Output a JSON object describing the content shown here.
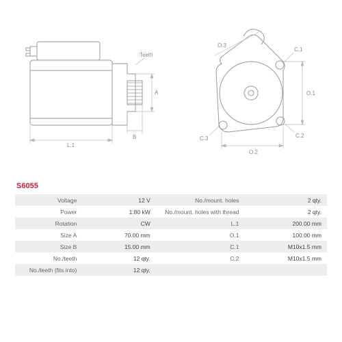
{
  "part_code": "S6055",
  "diagram": {
    "stroke": "#9a9a9a",
    "stroke_width": 1,
    "dim_stroke": "#b0b0b0",
    "side_labels": {
      "L1": "L.1",
      "B": "B",
      "A": "A",
      "Teeth": "Teeth"
    },
    "front_labels": {
      "O1": "O.1",
      "O2": "O.2",
      "O3": "O.3",
      "C1": "C.1",
      "C2": "C.2",
      "C3": "C.3"
    }
  },
  "specs": {
    "rows": [
      {
        "ll": "Voltage",
        "lv": "12 V",
        "rl": "No./mount. holes",
        "rv": "2 qty."
      },
      {
        "ll": "Power",
        "lv": "1.80 kW",
        "rl": "No./mount. holes with thread",
        "rv": "2 qty."
      },
      {
        "ll": "Rotation",
        "lv": "CW",
        "rl": "L.1",
        "rv": "200.00 mm"
      },
      {
        "ll": "Size A",
        "lv": "70.00 mm",
        "rl": "O.1",
        "rv": "100.00 mm"
      },
      {
        "ll": "Size B",
        "lv": "15.00 mm",
        "rl": "C.1",
        "rv": "M10x1.5 mm"
      },
      {
        "ll": "No./teeth",
        "lv": "12 qty.",
        "rl": "C.2",
        "rv": "M10x1.5 mm"
      },
      {
        "ll": "No./teeth (fits into)",
        "lv": "12 qty.",
        "rl": "",
        "rv": ""
      }
    ]
  }
}
